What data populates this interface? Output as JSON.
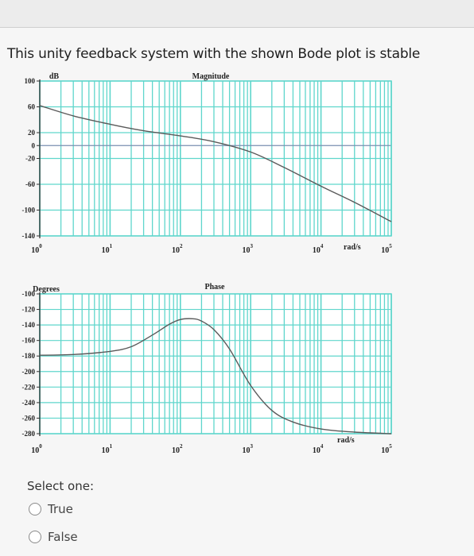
{
  "question": {
    "text": "This unity feedback system with the shown Bode plot is stable"
  },
  "answer": {
    "prompt": "Select one:",
    "options": [
      {
        "label": "True",
        "selected": false
      },
      {
        "label": "False",
        "selected": false
      }
    ]
  },
  "colors": {
    "grid": "#5fd6cc",
    "curve": "#5a5a5a",
    "axis": "#333333",
    "radio_border": "#8a8a8a"
  },
  "chart_data": [
    {
      "type": "line",
      "title": "Magnitude",
      "ylabel": "dB",
      "xlabel": "rad/s",
      "x_scale": "log",
      "xlim": [
        1,
        100000
      ],
      "ylim": [
        -140,
        100
      ],
      "y_ticks": [
        100,
        60,
        20,
        0,
        -20,
        -60,
        -100,
        -140
      ],
      "x_ticks": [
        {
          "value": 1,
          "base": "10",
          "exp": "0"
        },
        {
          "value": 10,
          "base": "10",
          "exp": "1"
        },
        {
          "value": 100,
          "base": "10",
          "exp": "2"
        },
        {
          "value": 1000,
          "base": "10",
          "exp": "3"
        },
        {
          "value": 10000,
          "base": "10",
          "exp": "4"
        },
        {
          "value": 100000,
          "base": "10",
          "exp": "5"
        }
      ],
      "grid": true,
      "series": [
        {
          "x": [
            1,
            3,
            10,
            30,
            100,
            300,
            1000,
            3000,
            10000,
            30000,
            100000
          ],
          "y": [
            62,
            46,
            33,
            23,
            15,
            6,
            -10,
            -34,
            -63,
            -88,
            -118
          ]
        }
      ]
    },
    {
      "type": "line",
      "title": "Phase",
      "ylabel": "Degrees",
      "xlabel": "rad/s",
      "x_scale": "log",
      "xlim": [
        1,
        100000
      ],
      "ylim": [
        -280,
        -100
      ],
      "y_ticks": [
        -100,
        -120,
        -140,
        -160,
        -180,
        -200,
        -220,
        -240,
        -260,
        -280
      ],
      "x_ticks": [
        {
          "value": 1,
          "base": "10",
          "exp": "0"
        },
        {
          "value": 10,
          "base": "10",
          "exp": "1"
        },
        {
          "value": 100,
          "base": "10",
          "exp": "2"
        },
        {
          "value": 1000,
          "base": "10",
          "exp": "3"
        },
        {
          "value": 10000,
          "base": "10",
          "exp": "4"
        },
        {
          "value": 100000,
          "base": "10",
          "exp": "5"
        }
      ],
      "grid": true,
      "series": [
        {
          "x": [
            1,
            3,
            10,
            20,
            40,
            70,
            100,
            150,
            200,
            300,
            500,
            1000,
            2000,
            4000,
            10000,
            30000,
            100000
          ],
          "y": [
            -179,
            -178,
            -174,
            -168,
            -153,
            -139,
            -133,
            -132,
            -135,
            -146,
            -171,
            -218,
            -250,
            -265,
            -274,
            -278,
            -280
          ]
        }
      ]
    }
  ]
}
